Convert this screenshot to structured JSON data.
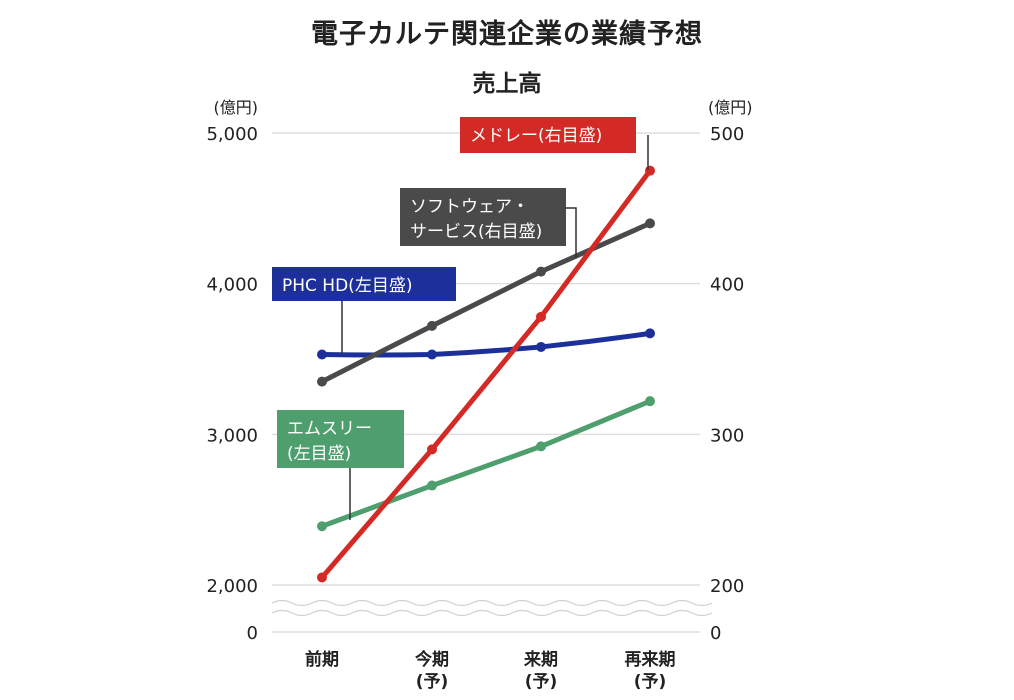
{
  "title": "電子カルテ関連企業の業績予想",
  "subtitle": "売上高",
  "chart_data": {
    "type": "line",
    "categories": [
      [
        "前期"
      ],
      [
        "今期",
        "(予)"
      ],
      [
        "来期",
        "(予)"
      ],
      [
        "再来期",
        "(予)"
      ]
    ],
    "left_axis": {
      "unit": "(億円)",
      "ticks": [
        "0",
        "2,000",
        "3,000",
        "4,000",
        "5,000"
      ],
      "ylim": [
        2000,
        5000
      ],
      "broken": true
    },
    "right_axis": {
      "unit": "(億円)",
      "ticks": [
        "0",
        "200",
        "300",
        "400",
        "500"
      ],
      "ylim": [
        200,
        500
      ],
      "broken": true
    },
    "series": [
      {
        "name": [
          "メドレー(右目盛)"
        ],
        "axis": "right",
        "color": "#d42a26",
        "values": [
          205,
          290,
          378,
          475
        ]
      },
      {
        "name": [
          "ソフトウェア・",
          "サービス(右目盛)"
        ],
        "axis": "right",
        "color": "#4a4a4a",
        "values": [
          335,
          372,
          408,
          440
        ]
      },
      {
        "name": [
          "PHC HD(左目盛)"
        ],
        "axis": "left",
        "color": "#1c2f9a",
        "values": [
          3530,
          3530,
          3580,
          3670
        ]
      },
      {
        "name": [
          "エムスリー",
          "(左目盛)"
        ],
        "axis": "left",
        "color": "#4f9e6e",
        "values": [
          2390,
          2660,
          2920,
          3220
        ]
      }
    ],
    "grid": true
  }
}
